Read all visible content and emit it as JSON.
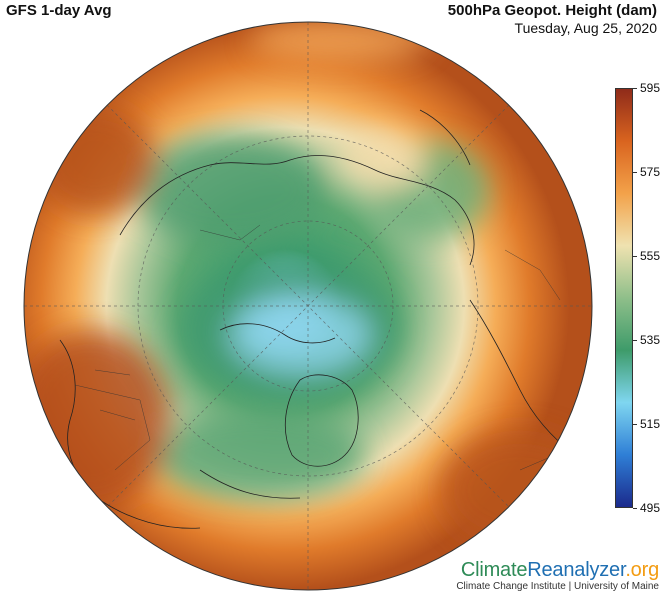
{
  "header": {
    "left_title": "GFS 1-day Avg",
    "right_title": "500hPa Geopot. Height (dam)",
    "date": "Tuesday, Aug 25, 2020"
  },
  "colorbar": {
    "min": 495,
    "max": 595,
    "ticks": [
      "595",
      "575",
      "555",
      "535",
      "515",
      "495"
    ],
    "colors": [
      "#1b2a8c",
      "#2f7fd6",
      "#7fd6f0",
      "#3e9b6a",
      "#8fbf8a",
      "#efe2b0",
      "#f3a24a",
      "#d9641f",
      "#8f2b1a"
    ]
  },
  "map": {
    "projection": "north-polar-stereographic",
    "features": [
      "coastlines",
      "country-borders",
      "us-state-borders",
      "lat-lon-graticule"
    ]
  },
  "brand": {
    "logo_part1": "Climate",
    "logo_part2": "Reanalyzer",
    "logo_part3": ".org",
    "subtitle": "Climate Change Institute | University of Maine"
  }
}
